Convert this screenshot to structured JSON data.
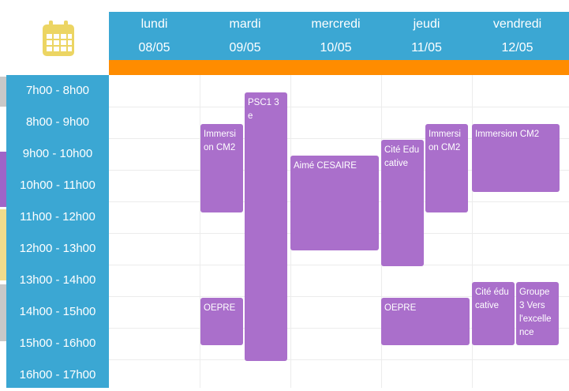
{
  "colors": {
    "header_blue": "#3ba7d3",
    "orange_bar": "#ff8c00",
    "event_purple": "#aa6fcb",
    "calendar_icon": "#ecd563"
  },
  "icon": "calendar-icon",
  "days": [
    {
      "name": "lundi",
      "date": "08/05"
    },
    {
      "name": "mardi",
      "date": "09/05"
    },
    {
      "name": "mercredi",
      "date": "10/05"
    },
    {
      "name": "jeudi",
      "date": "11/05"
    },
    {
      "name": "vendredi",
      "date": "12/05"
    }
  ],
  "time_slots": [
    "7h00 - 8h00",
    "8h00 - 9h00",
    "9h00 - 10h00",
    "10h00 - 11h00",
    "11h00 - 12h00",
    "12h00 - 13h00",
    "13h00 - 14h00",
    "14h00 - 15h00",
    "15h00 - 16h00",
    "16h00 - 17h00"
  ],
  "events": [
    {
      "title": "Immersion CM2",
      "day": "lundi",
      "start": "8h00",
      "end": "11h00"
    },
    {
      "title": "OEPRE",
      "day": "lundi",
      "start": "14h00",
      "end": "15h30"
    },
    {
      "title": "PSC1 3e",
      "day": "mardi",
      "start": "7h30",
      "end": "16h00"
    },
    {
      "title": "Aimé CESAIRE",
      "day": "mercredi",
      "start": "9h30",
      "end": "12h30"
    },
    {
      "title": "Cité Educative",
      "day": "jeudi",
      "start": "9h00",
      "end": "13h00"
    },
    {
      "title": "Immersion CM2",
      "day": "jeudi",
      "start": "8h00",
      "end": "11h00"
    },
    {
      "title": "OEPRE",
      "day": "jeudi",
      "start": "14h00",
      "end": "15h30"
    },
    {
      "title": "Immersion CM2",
      "day": "vendredi",
      "start": "8h00",
      "end": "10h15"
    },
    {
      "title": "Cité éducative",
      "day": "vendredi",
      "start": "13h00",
      "end": "15h30"
    },
    {
      "title": "Groupe 3 Vers l'excellence",
      "day": "vendredi",
      "start": "13h00",
      "end": "15h30"
    }
  ]
}
